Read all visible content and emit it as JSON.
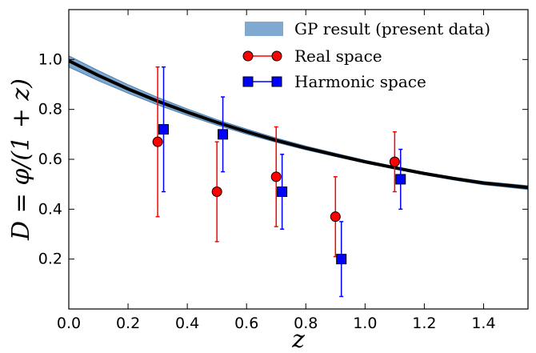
{
  "chart_data": {
    "type": "scatter",
    "title": "",
    "xlabel": "z",
    "ylabel": "D = φ/(1 + z)",
    "xlim": [
      0.0,
      1.55
    ],
    "ylim": [
      0.0,
      1.2
    ],
    "xticks": [
      "0.0",
      "0.2",
      "0.4",
      "0.6",
      "0.8",
      "1.0",
      "1.2",
      "1.4"
    ],
    "yticks": [
      "0.2",
      "0.4",
      "0.6",
      "0.8",
      "1.0"
    ],
    "grid": false,
    "legend_position": "top-right",
    "band": {
      "name": "GP result (present data)",
      "color": "#7fa9d1",
      "x": [
        0.0,
        0.1,
        0.2,
        0.3,
        0.4,
        0.5,
        0.6,
        0.7,
        0.8,
        0.9,
        1.0,
        1.1,
        1.2,
        1.3,
        1.4,
        1.55
      ],
      "mean": [
        0.995,
        0.936,
        0.882,
        0.833,
        0.789,
        0.748,
        0.711,
        0.676,
        0.645,
        0.617,
        0.59,
        0.566,
        0.543,
        0.523,
        0.505,
        0.487
      ],
      "lower": [
        0.97,
        0.915,
        0.865,
        0.818,
        0.776,
        0.737,
        0.701,
        0.668,
        0.638,
        0.611,
        0.585,
        0.561,
        0.538,
        0.517,
        0.498,
        0.479
      ],
      "upper": [
        1.015,
        0.955,
        0.899,
        0.848,
        0.802,
        0.759,
        0.721,
        0.685,
        0.653,
        0.624,
        0.596,
        0.571,
        0.548,
        0.528,
        0.511,
        0.494
      ]
    },
    "series": [
      {
        "name": "Real space",
        "marker": "circle",
        "color": "#ff0000",
        "x": [
          0.3,
          0.5,
          0.7,
          0.9,
          1.1
        ],
        "y": [
          0.67,
          0.47,
          0.53,
          0.37,
          0.59
        ],
        "yerr_low": [
          0.37,
          0.27,
          0.33,
          0.21,
          0.47
        ],
        "yerr_high": [
          0.97,
          0.67,
          0.73,
          0.53,
          0.71
        ]
      },
      {
        "name": "Harmonic space",
        "marker": "square",
        "color": "#0000ff",
        "x": [
          0.32,
          0.52,
          0.72,
          0.92,
          1.12
        ],
        "y": [
          0.72,
          0.7,
          0.47,
          0.2,
          0.52
        ],
        "yerr_low": [
          0.47,
          0.55,
          0.32,
          0.05,
          0.4
        ],
        "yerr_high": [
          0.97,
          0.85,
          0.62,
          0.35,
          0.64
        ]
      }
    ]
  }
}
